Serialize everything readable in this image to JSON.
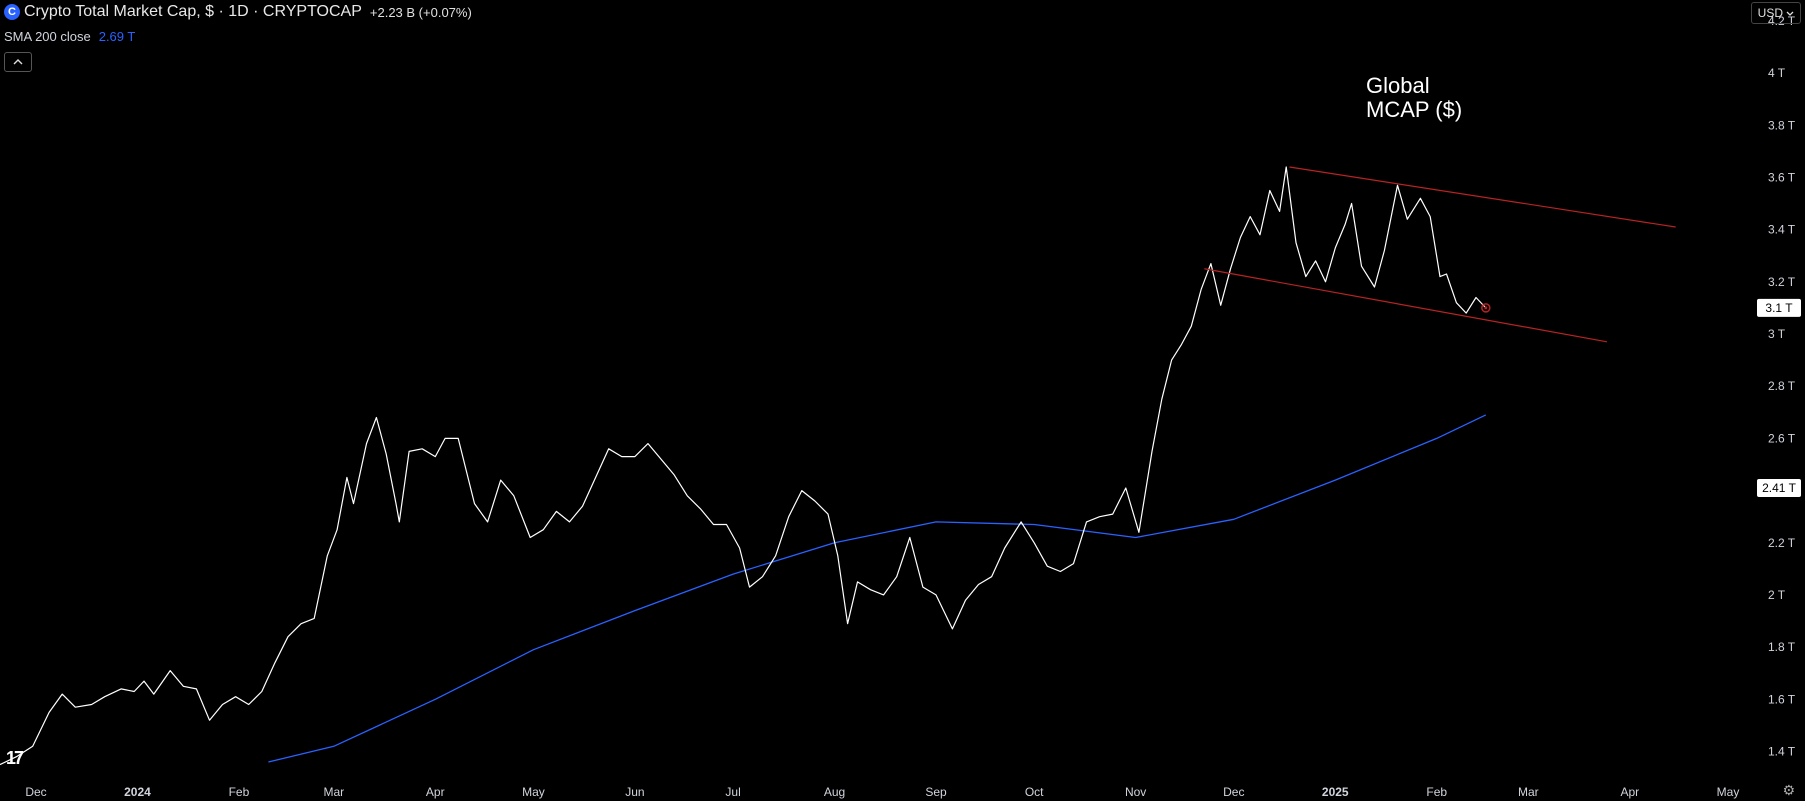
{
  "header": {
    "logo_glyph": "C",
    "title": "Crypto Total Market Cap, $ · 1D · CRYPTOCAP",
    "change": "+2.23 B (+0.07%)",
    "indicator_label": "SMA 200 close",
    "indicator_value": "2.69 T",
    "collapse_icon": "chevron-up-icon"
  },
  "currency_button": {
    "label": "USD",
    "icon": "chevron-down-icon"
  },
  "annotation_lines": [
    "Global",
    "MCAP ($)"
  ],
  "settings_icon": "gear-icon",
  "colors": {
    "price": "#ffffff",
    "sma": "#2962ff",
    "channel": "#b82323",
    "background": "#000000"
  },
  "chart_data": {
    "type": "line",
    "title": "Crypto Total Market Cap, $ · 1D · CRYPTOCAP",
    "xlabel": "",
    "ylabel": "",
    "y_unit": "T",
    "ylim": [
      1.31,
      4.28
    ],
    "xlim": [
      "2023-11-20",
      "2025-05-23"
    ],
    "x_ticks": [
      {
        "date": "2023-12-01",
        "label": "Dec",
        "bold": false
      },
      {
        "date": "2024-01-01",
        "label": "2024",
        "bold": true
      },
      {
        "date": "2024-02-01",
        "label": "Feb",
        "bold": false
      },
      {
        "date": "2024-03-01",
        "label": "Mar",
        "bold": false
      },
      {
        "date": "2024-04-01",
        "label": "Apr",
        "bold": false
      },
      {
        "date": "2024-05-01",
        "label": "May",
        "bold": false
      },
      {
        "date": "2024-06-01",
        "label": "Jun",
        "bold": false
      },
      {
        "date": "2024-07-01",
        "label": "Jul",
        "bold": false
      },
      {
        "date": "2024-08-01",
        "label": "Aug",
        "bold": false
      },
      {
        "date": "2024-09-01",
        "label": "Sep",
        "bold": false
      },
      {
        "date": "2024-10-01",
        "label": "Oct",
        "bold": false
      },
      {
        "date": "2024-11-01",
        "label": "Nov",
        "bold": false
      },
      {
        "date": "2024-12-01",
        "label": "Dec",
        "bold": false
      },
      {
        "date": "2025-01-01",
        "label": "2025",
        "bold": true
      },
      {
        "date": "2025-02-01",
        "label": "Feb",
        "bold": false
      },
      {
        "date": "2025-03-01",
        "label": "Mar",
        "bold": false
      },
      {
        "date": "2025-04-01",
        "label": "Apr",
        "bold": false
      },
      {
        "date": "2025-05-01",
        "label": "May",
        "bold": false
      }
    ],
    "y_ticks": [
      {
        "value": 4.2,
        "label": "4.2 T"
      },
      {
        "value": 4.0,
        "label": "4 T"
      },
      {
        "value": 3.8,
        "label": "3.8 T"
      },
      {
        "value": 3.6,
        "label": "3.6 T"
      },
      {
        "value": 3.4,
        "label": "3.4 T"
      },
      {
        "value": 3.2,
        "label": "3.2 T"
      },
      {
        "value": 3.0,
        "label": "3 T"
      },
      {
        "value": 2.8,
        "label": "2.8 T"
      },
      {
        "value": 2.6,
        "label": "2.6 T"
      },
      {
        "value": 2.2,
        "label": "2.2 T"
      },
      {
        "value": 2.0,
        "label": "2 T"
      },
      {
        "value": 1.8,
        "label": "1.8 T"
      },
      {
        "value": 1.6,
        "label": "1.6 T"
      },
      {
        "value": 1.4,
        "label": "1.4 T"
      }
    ],
    "price_tags": [
      {
        "value": 3.1,
        "label": "3.1 T",
        "color": "#ffffff",
        "text_color": "#000000"
      },
      {
        "value": 2.41,
        "label": "2.41 T",
        "color": "#ffffff",
        "text_color": "#000000"
      }
    ],
    "series": [
      {
        "name": "Crypto Total Market Cap, $",
        "color": "#ffffff",
        "points": [
          [
            "2023-11-20",
            1.35
          ],
          [
            "2023-11-25",
            1.38
          ],
          [
            "2023-11-30",
            1.42
          ],
          [
            "2023-12-05",
            1.55
          ],
          [
            "2023-12-09",
            1.62
          ],
          [
            "2023-12-13",
            1.57
          ],
          [
            "2023-12-18",
            1.58
          ],
          [
            "2023-12-22",
            1.61
          ],
          [
            "2023-12-27",
            1.64
          ],
          [
            "2023-12-31",
            1.63
          ],
          [
            "2024-01-03",
            1.67
          ],
          [
            "2024-01-06",
            1.62
          ],
          [
            "2024-01-11",
            1.71
          ],
          [
            "2024-01-15",
            1.65
          ],
          [
            "2024-01-19",
            1.64
          ],
          [
            "2024-01-23",
            1.52
          ],
          [
            "2024-01-27",
            1.58
          ],
          [
            "2024-01-31",
            1.61
          ],
          [
            "2024-02-04",
            1.58
          ],
          [
            "2024-02-08",
            1.63
          ],
          [
            "2024-02-12",
            1.74
          ],
          [
            "2024-02-16",
            1.84
          ],
          [
            "2024-02-20",
            1.89
          ],
          [
            "2024-02-24",
            1.91
          ],
          [
            "2024-02-28",
            2.15
          ],
          [
            "2024-03-02",
            2.25
          ],
          [
            "2024-03-05",
            2.45
          ],
          [
            "2024-03-07",
            2.35
          ],
          [
            "2024-03-11",
            2.58
          ],
          [
            "2024-03-14",
            2.68
          ],
          [
            "2024-03-17",
            2.54
          ],
          [
            "2024-03-20",
            2.35
          ],
          [
            "2024-03-21",
            2.28
          ],
          [
            "2024-03-24",
            2.55
          ],
          [
            "2024-03-28",
            2.56
          ],
          [
            "2024-04-01",
            2.53
          ],
          [
            "2024-04-04",
            2.6
          ],
          [
            "2024-04-08",
            2.6
          ],
          [
            "2024-04-13",
            2.35
          ],
          [
            "2024-04-17",
            2.28
          ],
          [
            "2024-04-21",
            2.44
          ],
          [
            "2024-04-25",
            2.38
          ],
          [
            "2024-04-30",
            2.22
          ],
          [
            "2024-05-04",
            2.25
          ],
          [
            "2024-05-08",
            2.32
          ],
          [
            "2024-05-12",
            2.28
          ],
          [
            "2024-05-16",
            2.34
          ],
          [
            "2024-05-20",
            2.45
          ],
          [
            "2024-05-24",
            2.56
          ],
          [
            "2024-05-28",
            2.53
          ],
          [
            "2024-06-01",
            2.53
          ],
          [
            "2024-06-05",
            2.58
          ],
          [
            "2024-06-09",
            2.52
          ],
          [
            "2024-06-13",
            2.46
          ],
          [
            "2024-06-17",
            2.38
          ],
          [
            "2024-06-21",
            2.33
          ],
          [
            "2024-06-25",
            2.27
          ],
          [
            "2024-06-29",
            2.27
          ],
          [
            "2024-07-03",
            2.18
          ],
          [
            "2024-07-06",
            2.03
          ],
          [
            "2024-07-10",
            2.07
          ],
          [
            "2024-07-14",
            2.15
          ],
          [
            "2024-07-18",
            2.3
          ],
          [
            "2024-07-22",
            2.4
          ],
          [
            "2024-07-26",
            2.36
          ],
          [
            "2024-07-30",
            2.31
          ],
          [
            "2024-08-02",
            2.15
          ],
          [
            "2024-08-05",
            1.89
          ],
          [
            "2024-08-08",
            2.05
          ],
          [
            "2024-08-12",
            2.02
          ],
          [
            "2024-08-16",
            2.0
          ],
          [
            "2024-08-20",
            2.07
          ],
          [
            "2024-08-24",
            2.22
          ],
          [
            "2024-08-28",
            2.03
          ],
          [
            "2024-09-01",
            2.0
          ],
          [
            "2024-09-06",
            1.87
          ],
          [
            "2024-09-10",
            1.98
          ],
          [
            "2024-09-14",
            2.04
          ],
          [
            "2024-09-18",
            2.07
          ],
          [
            "2024-09-22",
            2.18
          ],
          [
            "2024-09-27",
            2.28
          ],
          [
            "2024-10-01",
            2.2
          ],
          [
            "2024-10-05",
            2.11
          ],
          [
            "2024-10-09",
            2.09
          ],
          [
            "2024-10-13",
            2.12
          ],
          [
            "2024-10-17",
            2.28
          ],
          [
            "2024-10-21",
            2.3
          ],
          [
            "2024-10-25",
            2.31
          ],
          [
            "2024-10-29",
            2.41
          ],
          [
            "2024-11-02",
            2.24
          ],
          [
            "2024-11-06",
            2.55
          ],
          [
            "2024-11-09",
            2.75
          ],
          [
            "2024-11-12",
            2.9
          ],
          [
            "2024-11-15",
            2.96
          ],
          [
            "2024-11-18",
            3.03
          ],
          [
            "2024-11-21",
            3.17
          ],
          [
            "2024-11-24",
            3.27
          ],
          [
            "2024-11-27",
            3.11
          ],
          [
            "2024-11-30",
            3.25
          ],
          [
            "2024-12-03",
            3.37
          ],
          [
            "2024-12-06",
            3.45
          ],
          [
            "2024-12-09",
            3.38
          ],
          [
            "2024-12-12",
            3.55
          ],
          [
            "2024-12-15",
            3.47
          ],
          [
            "2024-12-17",
            3.64
          ],
          [
            "2024-12-20",
            3.35
          ],
          [
            "2024-12-23",
            3.22
          ],
          [
            "2024-12-26",
            3.28
          ],
          [
            "2024-12-29",
            3.2
          ],
          [
            "2025-01-01",
            3.33
          ],
          [
            "2025-01-04",
            3.42
          ],
          [
            "2025-01-06",
            3.5
          ],
          [
            "2025-01-09",
            3.26
          ],
          [
            "2025-01-13",
            3.18
          ],
          [
            "2025-01-16",
            3.32
          ],
          [
            "2025-01-20",
            3.57
          ],
          [
            "2025-01-23",
            3.44
          ],
          [
            "2025-01-27",
            3.52
          ],
          [
            "2025-01-30",
            3.45
          ],
          [
            "2025-02-02",
            3.22
          ],
          [
            "2025-02-04",
            3.23
          ],
          [
            "2025-02-07",
            3.12
          ],
          [
            "2025-02-10",
            3.08
          ],
          [
            "2025-02-13",
            3.14
          ],
          [
            "2025-02-16",
            3.1
          ]
        ]
      },
      {
        "name": "SMA 200 close",
        "color": "#2962ff",
        "points": [
          [
            "2024-02-10",
            1.36
          ],
          [
            "2024-03-01",
            1.42
          ],
          [
            "2024-04-01",
            1.6
          ],
          [
            "2024-05-01",
            1.79
          ],
          [
            "2024-06-01",
            1.94
          ],
          [
            "2024-07-01",
            2.08
          ],
          [
            "2024-08-01",
            2.2
          ],
          [
            "2024-09-01",
            2.28
          ],
          [
            "2024-10-01",
            2.27
          ],
          [
            "2024-11-01",
            2.22
          ],
          [
            "2024-12-01",
            2.29
          ],
          [
            "2025-01-01",
            2.44
          ],
          [
            "2025-02-01",
            2.6
          ],
          [
            "2025-02-16",
            2.69
          ]
        ]
      }
    ],
    "trendlines": [
      {
        "name": "channel-upper",
        "color": "#b82323",
        "start": [
          "2024-12-18",
          3.64
        ],
        "end": [
          "2025-04-15",
          3.41
        ]
      },
      {
        "name": "channel-lower",
        "color": "#b82323",
        "start": [
          "2024-11-22",
          3.25
        ],
        "end": [
          "2025-03-25",
          2.97
        ]
      }
    ],
    "last_point_marker": {
      "date": "2025-02-16",
      "value": 3.1,
      "color": "#b82323"
    },
    "grid": false,
    "legend": "top-left"
  }
}
